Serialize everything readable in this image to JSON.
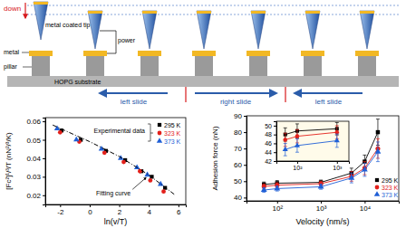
{
  "diagram": {
    "down": "down",
    "tip": "metal coated tip",
    "power": "power",
    "metal": "metal",
    "pillar": "pillar",
    "substrate": "HOPG substrate",
    "slides": [
      "left slide",
      "right slide",
      "left slide"
    ]
  },
  "chart_data": [
    {
      "type": "scatter",
      "x_label": "ln(v/T)",
      "y_label": "[Fc²]¹/³/T (nN²/³/K)",
      "xlim": [
        -3,
        6.5
      ],
      "xticks": [
        -2,
        0,
        2,
        4,
        6
      ],
      "ylim": [
        0.015,
        0.062
      ],
      "yticks": [
        0.02,
        0.03,
        0.04,
        0.05,
        0.06
      ],
      "legend": "upper right",
      "legend_title": "Experimental data",
      "series": [
        {
          "name": "295 K",
          "color": "#000000",
          "marker": "square",
          "x": [
            -1.9,
            -0.6,
            1.1,
            2.4,
            3.5,
            4.2,
            5.1
          ],
          "values": [
            0.055,
            0.05,
            0.044,
            0.039,
            0.033,
            0.03,
            0.024
          ]
        },
        {
          "name": "323 K",
          "color": "#e3201b",
          "marker": "circle",
          "x": [
            -2.0,
            -0.7,
            1.0,
            2.3,
            3.4,
            4.1,
            5.0
          ],
          "values": [
            0.054,
            0.049,
            0.043,
            0.038,
            0.033,
            0.028,
            0.022
          ]
        },
        {
          "name": "373 K",
          "color": "#1f5fd6",
          "marker": "triangle",
          "x": [
            -2.2,
            -0.9,
            0.8,
            2.1,
            3.2,
            3.9,
            4.8
          ],
          "values": [
            0.056,
            0.05,
            0.045,
            0.04,
            0.035,
            0.031,
            0.026
          ]
        },
        {
          "name": "Fitting curve",
          "type": "line",
          "line_style": "dashed",
          "color": "#000000",
          "x": [
            -2.5,
            0,
            2,
            4,
            5.8
          ],
          "values": [
            0.058,
            0.049,
            0.041,
            0.031,
            0.02
          ]
        }
      ]
    },
    {
      "type": "line",
      "x_label": "Velocity (nm/s)",
      "y_label": "Adhesion force (nN)",
      "log": "x",
      "xlim": [
        20,
        60000
      ],
      "xticks": [
        {
          "value": 100,
          "label": "10²"
        },
        {
          "value": 1000,
          "label": "10³"
        },
        {
          "value": 10000,
          "label": "10⁴"
        }
      ],
      "ylim": [
        38,
        90
      ],
      "yticks": [
        40,
        50,
        60,
        70,
        80,
        90
      ],
      "legend": "lower right",
      "x": [
        50,
        100,
        1000,
        5000,
        10000,
        20000
      ],
      "series": [
        {
          "name": "295 K",
          "color": "#000000",
          "marker": "square",
          "values": [
            48,
            48.8,
            49.3,
            55,
            62,
            80
          ],
          "errors": [
            1.5,
            1.6,
            1.4,
            3,
            4,
            8
          ]
        },
        {
          "name": "323 K",
          "color": "#e3201b",
          "marker": "circle",
          "values": [
            46.8,
            47.6,
            48.5,
            53,
            58,
            70
          ],
          "errors": [
            1.5,
            1.5,
            1.5,
            3,
            4,
            6
          ]
        },
        {
          "name": "373 K",
          "color": "#1f5fd6",
          "marker": "triangle",
          "values": [
            44.6,
            45.5,
            46.6,
            52,
            57,
            68
          ],
          "errors": [
            1.4,
            1.5,
            1.5,
            3,
            4,
            6
          ]
        }
      ]
    },
    {
      "type": "line",
      "log": "x",
      "xlim": [
        30,
        2000
      ],
      "xticks": [
        {
          "value": 100,
          "label": "10²"
        },
        {
          "value": 1000,
          "label": "10³"
        }
      ],
      "ylim": [
        42,
        51
      ],
      "yticks": [
        42,
        44,
        46,
        48,
        50
      ],
      "x": [
        50,
        100,
        1000
      ],
      "series": [
        {
          "name": "295 K",
          "color": "#000000",
          "marker": "square",
          "values": [
            48,
            48.8,
            49.3
          ],
          "errors": [
            1.5,
            1.6,
            1.4
          ]
        },
        {
          "name": "323 K",
          "color": "#e3201b",
          "marker": "circle",
          "values": [
            46.8,
            47.6,
            48.5
          ],
          "errors": [
            1.5,
            1.5,
            1.5
          ]
        },
        {
          "name": "373 K",
          "color": "#1f5fd6",
          "marker": "triangle",
          "values": [
            44.6,
            45.5,
            46.6
          ],
          "errors": [
            1.4,
            1.5,
            1.5
          ]
        }
      ]
    }
  ]
}
